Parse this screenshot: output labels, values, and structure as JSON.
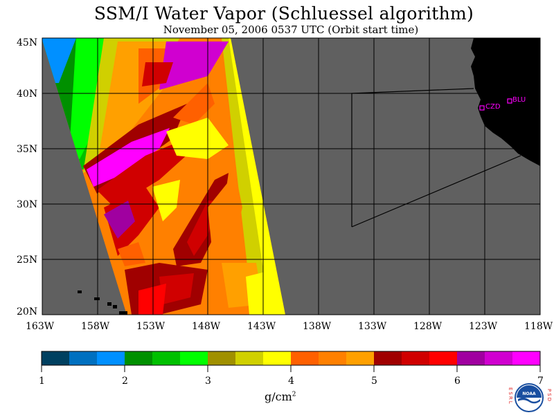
{
  "header": {
    "title": "SSM/I Water Vapor (Schluessel algorithm)",
    "subtitle": "November 05, 2006  0537 UTC  (Orbit start time)"
  },
  "map": {
    "lat_labels": [
      "45N",
      "40N",
      "35N",
      "30N",
      "25N",
      "20N"
    ],
    "lon_labels": [
      "163W",
      "158W",
      "153W",
      "148W",
      "143W",
      "138W",
      "133W",
      "128W",
      "123W",
      "118W"
    ],
    "stations": [
      {
        "name": "CZD"
      },
      {
        "name": "BLU"
      }
    ],
    "colors": {
      "land": "#000000",
      "nodata": "#606060",
      "grid": "#000000",
      "station": "#ff00ff"
    }
  },
  "colorbar": {
    "tick_labels": [
      "1",
      "2",
      "3",
      "4",
      "5",
      "6",
      "7"
    ],
    "units_base": "g/cm",
    "units_exp": "2",
    "colors": [
      "#004060",
      "#0070c0",
      "#0090ff",
      "#009000",
      "#00c000",
      "#00ff00",
      "#a09000",
      "#d0d000",
      "#ffff00",
      "#ff6000",
      "#ff8000",
      "#ffa000",
      "#a00000",
      "#d00000",
      "#ff0000",
      "#a000a0",
      "#d000d0",
      "#ff00ff"
    ]
  },
  "logo": {
    "left_letters": "ESRL",
    "right_letters": "PSD",
    "text": "NOAA"
  }
}
